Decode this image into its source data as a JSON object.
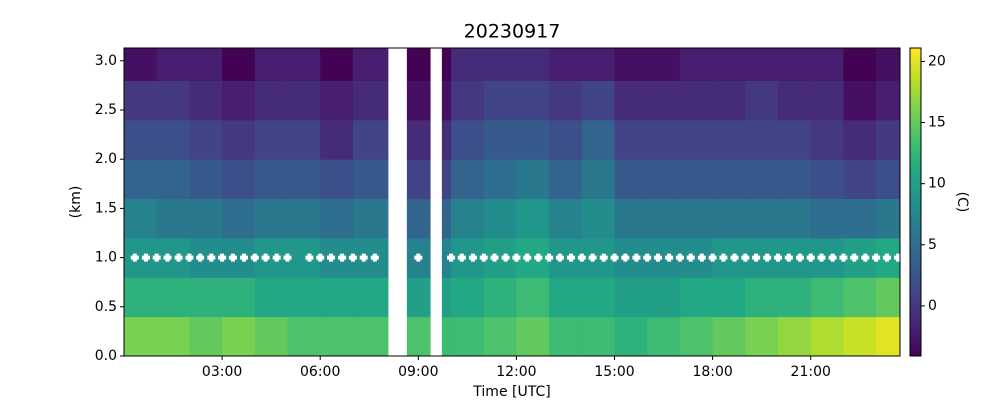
{
  "chart_data": {
    "type": "heatmap",
    "title": "20230917",
    "x_label": "Time [UTC]",
    "y_label": "(km)",
    "colorbar_label": "(C)",
    "colormap": "viridis",
    "x_edges": [
      0,
      1,
      2,
      3,
      4,
      5,
      6,
      7,
      8.07,
      8.65,
      9.36,
      9.72,
      10,
      11,
      12,
      13,
      14,
      15,
      16,
      17,
      18,
      19,
      20,
      21,
      22,
      23,
      23.73
    ],
    "y_edges": [
      0,
      0.4,
      0.8,
      1.2,
      1.6,
      2.0,
      2.4,
      2.8,
      3.13
    ],
    "z": [
      [
        16,
        16,
        15,
        16,
        15,
        14,
        14,
        14,
        null,
        14,
        null,
        13,
        13,
        14,
        15,
        13,
        13,
        12,
        13,
        14,
        15,
        16,
        17,
        18,
        19,
        20
      ],
      [
        12,
        12,
        12,
        12,
        11,
        11,
        11,
        11,
        null,
        10,
        null,
        10,
        11,
        12,
        13,
        11,
        11,
        10,
        10,
        11,
        11,
        12,
        12,
        13,
        14,
        15
      ],
      [
        9,
        9,
        8,
        8,
        9,
        9,
        8,
        8,
        null,
        7,
        null,
        7,
        9,
        10,
        11,
        9,
        9,
        8,
        8,
        8,
        9,
        9,
        9,
        9,
        10,
        11
      ],
      [
        7,
        6,
        6,
        5,
        6,
        6,
        5,
        6,
        null,
        4,
        null,
        4,
        7,
        8,
        9,
        7,
        8,
        6,
        6,
        6,
        6,
        6,
        6,
        5,
        5,
        6
      ],
      [
        4,
        4,
        3,
        2,
        3,
        3,
        2,
        3,
        null,
        1,
        null,
        1,
        4,
        5,
        6,
        4,
        6,
        3,
        3,
        3,
        3,
        3,
        3,
        2,
        1,
        2
      ],
      [
        2,
        2,
        1,
        0,
        1,
        1,
        -1,
        1,
        null,
        -1,
        null,
        -1,
        2,
        3,
        3,
        2,
        4,
        1,
        1,
        1,
        1,
        1,
        1,
        0,
        -1,
        0
      ],
      [
        0,
        0,
        -1,
        -2,
        -1,
        -1,
        -2,
        -1,
        null,
        -3,
        null,
        -3,
        0,
        1,
        1,
        0,
        1,
        -1,
        -1,
        -1,
        -1,
        0,
        -1,
        -1,
        -3,
        -2
      ],
      [
        -3,
        -2,
        -2,
        -4,
        -2,
        -2,
        -4,
        -2,
        null,
        -4,
        null,
        -4,
        -1,
        -1,
        -1,
        -2,
        -2,
        -3,
        -3,
        -2,
        -2,
        -2,
        -2,
        -2,
        -4,
        -3
      ]
    ],
    "markers": {
      "color": "#ffffff",
      "y": 1.0,
      "x": [
        0.33,
        0.67,
        1,
        1.33,
        1.67,
        2,
        2.33,
        2.67,
        3,
        3.33,
        3.67,
        4,
        4.33,
        4.67,
        5,
        5.67,
        6,
        6.33,
        6.67,
        7,
        7.33,
        7.67,
        9,
        10,
        10.33,
        10.67,
        11,
        11.33,
        11.67,
        12,
        12.33,
        12.67,
        13,
        13.33,
        13.67,
        14,
        14.33,
        14.67,
        15,
        15.33,
        15.67,
        16,
        16.33,
        16.67,
        17,
        17.33,
        17.67,
        18,
        18.33,
        18.67,
        19,
        19.33,
        19.67,
        20,
        20.33,
        20.67,
        21,
        21.33,
        21.67,
        22,
        22.33,
        22.67,
        23,
        23.33,
        23.67
      ]
    },
    "xlim": [
      0,
      23.73
    ],
    "xticks": [
      {
        "value": 3,
        "label": "03:00"
      },
      {
        "value": 6,
        "label": "06:00"
      },
      {
        "value": 9,
        "label": "09:00"
      },
      {
        "value": 12,
        "label": "12:00"
      },
      {
        "value": 15,
        "label": "15:00"
      },
      {
        "value": 18,
        "label": "18:00"
      },
      {
        "value": 21,
        "label": "21:00"
      }
    ],
    "ylim": [
      0,
      3.13
    ],
    "yticks": [
      {
        "value": 0,
        "label": "0.0"
      },
      0.5,
      {
        "value": 1,
        "label": "1.0"
      },
      1.5,
      {
        "value": 2,
        "label": "2.0"
      },
      2.5,
      {
        "value": 3,
        "label": "3.0"
      }
    ],
    "clim": [
      -4.1,
      21.1
    ],
    "cticks": [
      0,
      5,
      10,
      15,
      20
    ]
  }
}
